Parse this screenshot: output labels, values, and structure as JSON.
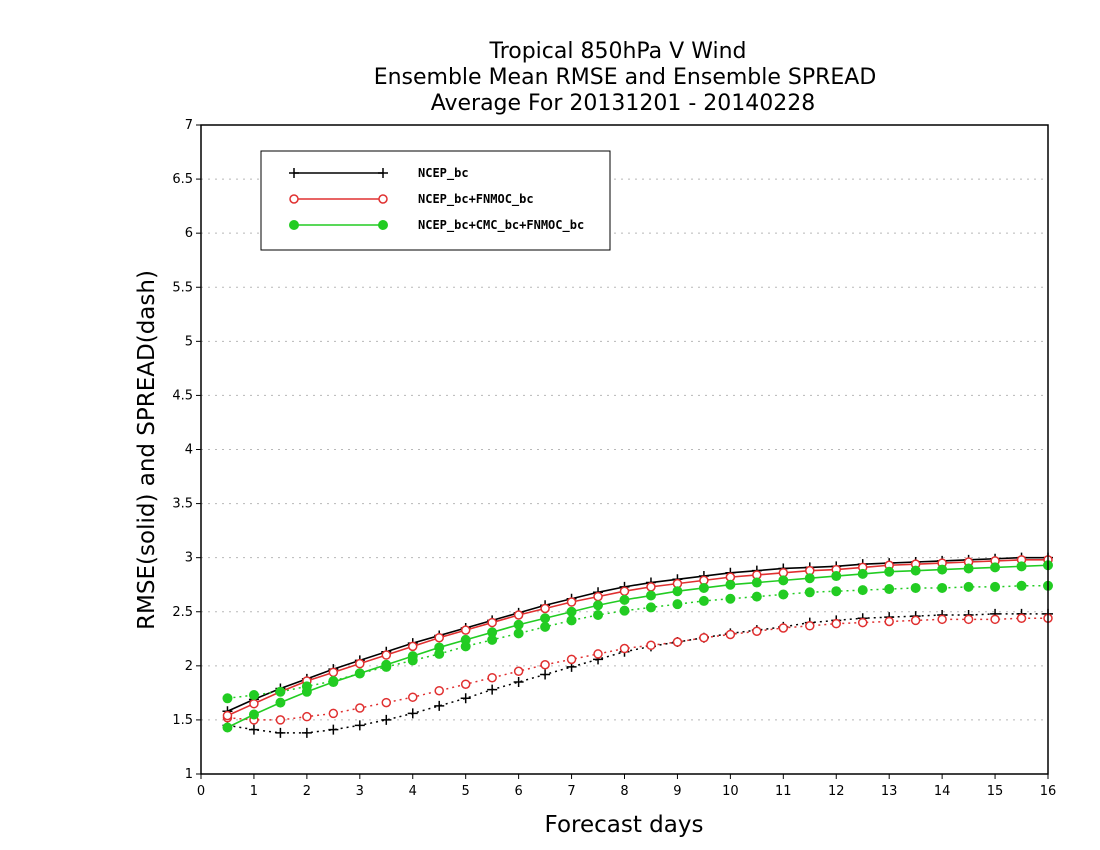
{
  "chart_data": {
    "type": "line",
    "title_lines": [
      "Tropical 850hPa V Wind",
      "Ensemble Mean RMSE and Ensemble SPREAD",
      "Average For 20131201 - 20140228"
    ],
    "xlabel": "Forecast days",
    "ylabel": "RMSE(solid) and SPREAD(dash)",
    "xlim": [
      0,
      16
    ],
    "ylim": [
      1,
      7
    ],
    "x_ticks": [
      "0",
      "1",
      "2",
      "3",
      "4",
      "5",
      "6",
      "7",
      "8",
      "9",
      "10",
      "11",
      "12",
      "13",
      "14",
      "15",
      "16"
    ],
    "y_ticks": [
      "1",
      "1.5",
      "2",
      "2.5",
      "3",
      "3.5",
      "4",
      "4.5",
      "5",
      "5.5",
      "6",
      "6.5",
      "7"
    ],
    "grid": true,
    "legend_position": "top-left",
    "x": [
      0.5,
      1,
      1.5,
      2,
      2.5,
      3,
      3.5,
      4,
      4.5,
      5,
      5.5,
      6,
      6.5,
      7,
      7.5,
      8,
      8.5,
      9,
      9.5,
      10,
      10.5,
      11,
      11.5,
      12,
      12.5,
      13,
      13.5,
      14,
      14.5,
      15,
      15.5,
      16
    ],
    "series": [
      {
        "name": "NCEP_bc",
        "color": "#000000",
        "marker": "plus",
        "rmse": [
          1.58,
          1.69,
          1.79,
          1.88,
          1.97,
          2.05,
          2.13,
          2.21,
          2.28,
          2.35,
          2.42,
          2.49,
          2.56,
          2.62,
          2.68,
          2.73,
          2.77,
          2.8,
          2.83,
          2.86,
          2.88,
          2.9,
          2.91,
          2.92,
          2.94,
          2.95,
          2.96,
          2.97,
          2.98,
          2.99,
          3.0,
          3.0
        ],
        "spread": [
          1.45,
          1.41,
          1.38,
          1.38,
          1.41,
          1.45,
          1.5,
          1.56,
          1.63,
          1.7,
          1.78,
          1.85,
          1.92,
          1.99,
          2.06,
          2.13,
          2.18,
          2.22,
          2.26,
          2.3,
          2.33,
          2.36,
          2.4,
          2.42,
          2.44,
          2.45,
          2.46,
          2.47,
          2.47,
          2.48,
          2.48,
          2.48
        ]
      },
      {
        "name": "NCEP_bc+FNMOC_bc",
        "color": "#e03030",
        "marker": "open-circle",
        "rmse": [
          1.54,
          1.65,
          1.76,
          1.86,
          1.94,
          2.02,
          2.1,
          2.18,
          2.26,
          2.33,
          2.4,
          2.47,
          2.53,
          2.59,
          2.64,
          2.69,
          2.73,
          2.76,
          2.79,
          2.82,
          2.84,
          2.86,
          2.88,
          2.89,
          2.91,
          2.93,
          2.94,
          2.95,
          2.96,
          2.97,
          2.98,
          2.98
        ],
        "spread": [
          1.52,
          1.5,
          1.5,
          1.53,
          1.56,
          1.61,
          1.66,
          1.71,
          1.77,
          1.83,
          1.89,
          1.95,
          2.01,
          2.06,
          2.11,
          2.16,
          2.19,
          2.22,
          2.26,
          2.29,
          2.32,
          2.35,
          2.37,
          2.39,
          2.4,
          2.41,
          2.42,
          2.43,
          2.43,
          2.43,
          2.44,
          2.44
        ]
      },
      {
        "name": "NCEP_bc+CMC_bc+FNMOC_bc",
        "color": "#22cc22",
        "marker": "filled-circle",
        "rmse": [
          1.43,
          1.55,
          1.66,
          1.76,
          1.85,
          1.93,
          2.01,
          2.09,
          2.17,
          2.24,
          2.31,
          2.38,
          2.44,
          2.5,
          2.56,
          2.61,
          2.65,
          2.69,
          2.72,
          2.75,
          2.77,
          2.79,
          2.81,
          2.83,
          2.85,
          2.87,
          2.88,
          2.89,
          2.9,
          2.91,
          2.92,
          2.93
        ],
        "spread": [
          1.7,
          1.73,
          1.76,
          1.81,
          1.86,
          1.93,
          1.99,
          2.05,
          2.11,
          2.18,
          2.24,
          2.3,
          2.36,
          2.42,
          2.47,
          2.51,
          2.54,
          2.57,
          2.6,
          2.62,
          2.64,
          2.66,
          2.68,
          2.69,
          2.7,
          2.71,
          2.72,
          2.72,
          2.73,
          2.73,
          2.74,
          2.74
        ]
      }
    ]
  }
}
